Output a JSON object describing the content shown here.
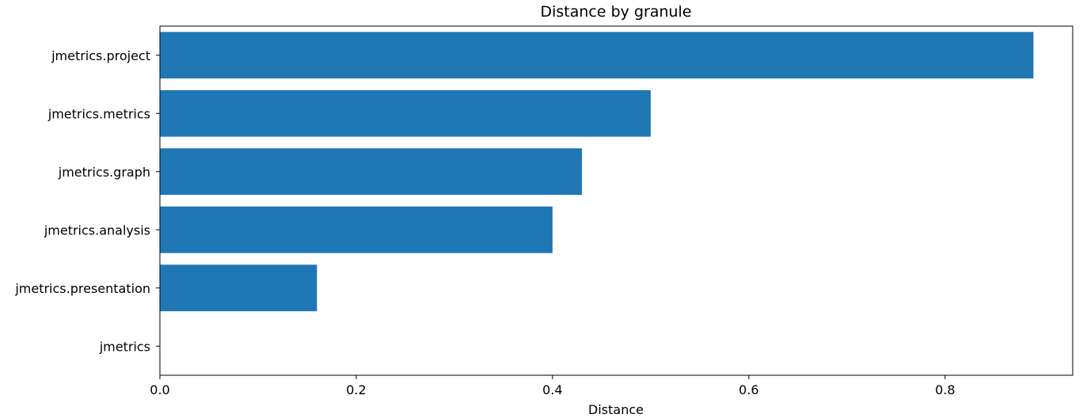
{
  "chart_data": {
    "type": "bar",
    "orientation": "horizontal",
    "title": "Distance by granule",
    "xlabel": "Distance",
    "ylabel": "",
    "categories": [
      "jmetrics",
      "jmetrics.presentation",
      "jmetrics.analysis",
      "jmetrics.graph",
      "jmetrics.metrics",
      "jmetrics.project"
    ],
    "values": [
      0.0,
      0.16,
      0.4,
      0.43,
      0.5,
      0.89
    ],
    "xlim": [
      0,
      0.93
    ],
    "xticks": [
      0.0,
      0.2,
      0.4,
      0.6,
      0.8
    ],
    "xtick_labels": [
      "0.0",
      "0.2",
      "0.4",
      "0.6",
      "0.8"
    ],
    "bar_color": "#1f77b4",
    "grid": false,
    "legend": "none"
  }
}
